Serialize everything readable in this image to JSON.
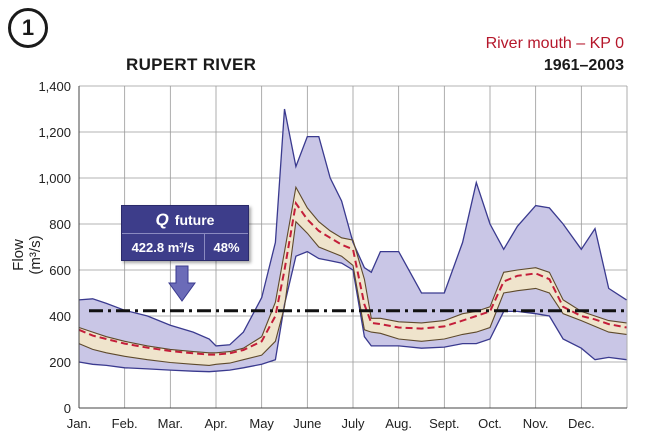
{
  "badge": "1",
  "title": "RUPERT RIVER",
  "subtitle": "River mouth – KP 0",
  "period": "1961–2003",
  "callout": {
    "label": "future",
    "icon": "q-flow-icon",
    "flow": "422.8 m³/s",
    "percent": "48%"
  },
  "chart_data": {
    "type": "area",
    "ylabel": "Flow (m³/s)",
    "xlabel": "",
    "ylim": [
      0,
      1400
    ],
    "yticks": [
      0,
      200,
      400,
      600,
      800,
      1000,
      1200,
      1400
    ],
    "ytick_labels": [
      "0",
      "200",
      "400",
      "600",
      "800",
      "1,000",
      "1,200",
      "1,400"
    ],
    "categories": [
      "Jan.",
      "Feb.",
      "Mar.",
      "Apr.",
      "May",
      "June",
      "July",
      "Aug.",
      "Sept.",
      "Oct.",
      "Nov.",
      "Dec."
    ],
    "grid": true,
    "x": [
      0,
      0.3,
      0.6,
      1,
      1.5,
      2,
      2.5,
      2.85,
      3,
      3.3,
      3.6,
      4,
      4.3,
      4.5,
      4.75,
      5,
      5.25,
      5.5,
      5.75,
      6,
      6.25,
      6.4,
      6.6,
      7,
      7.5,
      8,
      8.4,
      8.7,
      9,
      9.3,
      9.6,
      10,
      10.3,
      10.6,
      11,
      11.3,
      11.6,
      11.99
    ],
    "series": [
      {
        "role": "max",
        "values": [
          470,
          475,
          455,
          425,
          400,
          360,
          330,
          300,
          270,
          275,
          330,
          480,
          720,
          1300,
          1050,
          1180,
          1180,
          1000,
          900,
          720,
          610,
          590,
          680,
          680,
          500,
          500,
          720,
          980,
          800,
          690,
          790,
          880,
          870,
          800,
          690,
          780,
          520,
          470
        ]
      },
      {
        "role": "upper",
        "values": [
          350,
          330,
          310,
          290,
          270,
          255,
          245,
          240,
          240,
          245,
          260,
          310,
          460,
          680,
          960,
          870,
          810,
          770,
          740,
          730,
          560,
          390,
          390,
          375,
          370,
          380,
          410,
          420,
          440,
          590,
          600,
          610,
          590,
          470,
          420,
          400,
          380,
          370
        ]
      },
      {
        "role": "mean",
        "values": [
          340,
          315,
          300,
          280,
          262,
          248,
          238,
          232,
          232,
          238,
          252,
          290,
          400,
          600,
          890,
          820,
          770,
          740,
          710,
          690,
          450,
          370,
          365,
          350,
          345,
          355,
          380,
          400,
          420,
          550,
          575,
          585,
          560,
          440,
          400,
          385,
          365,
          350
        ]
      },
      {
        "role": "lower",
        "values": [
          280,
          255,
          240,
          225,
          210,
          198,
          190,
          185,
          190,
          195,
          210,
          230,
          290,
          440,
          810,
          760,
          700,
          680,
          660,
          620,
          340,
          330,
          325,
          300,
          290,
          300,
          320,
          330,
          350,
          500,
          510,
          520,
          500,
          410,
          380,
          355,
          330,
          320
        ]
      },
      {
        "role": "min",
        "values": [
          200,
          190,
          185,
          175,
          170,
          165,
          160,
          158,
          160,
          165,
          175,
          190,
          210,
          450,
          660,
          680,
          650,
          640,
          630,
          600,
          310,
          270,
          270,
          270,
          260,
          265,
          280,
          280,
          300,
          420,
          420,
          410,
          400,
          300,
          260,
          210,
          220,
          210
        ]
      }
    ],
    "reference_line": {
      "name": "future",
      "value": 422.8
    },
    "colors": {
      "envelope": "#c9c6e6",
      "envelope_edge": "#3a3a8f",
      "inner_band": "#efe4cc",
      "inner_edge": "#5e4a2c",
      "mean": "#c41e3a",
      "reference": "#111111",
      "callout": "#3d3d8a"
    }
  }
}
